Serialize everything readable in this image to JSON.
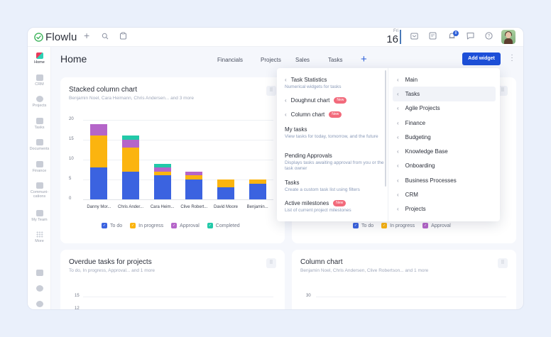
{
  "app": {
    "name": "Flowlu",
    "brand_color": "#3cb35a",
    "accent_color": "#1d4fd8"
  },
  "topbar": {
    "icons": [
      "plus-icon",
      "search-icon",
      "clipboard-icon"
    ],
    "date": {
      "weekday": "Fri",
      "day": "16"
    },
    "right_icons": [
      "mail-icon",
      "notes-icon",
      "bell-icon",
      "chat-icon",
      "help-icon"
    ],
    "notification_count": "8",
    "avatar": "user-avatar"
  },
  "sidebar": {
    "items": [
      {
        "label": "Home",
        "icon": "home-icon",
        "active": true
      },
      {
        "label": "CRM",
        "icon": "crm-funnel-icon"
      },
      {
        "label": "Projects",
        "icon": "projects-icon"
      },
      {
        "label": "Tasks",
        "icon": "tasks-icon"
      },
      {
        "label": "Documents",
        "icon": "documents-icon"
      },
      {
        "label": "Finance",
        "icon": "finance-icon"
      },
      {
        "label": "Communi-cations",
        "icon": "communications-icon"
      },
      {
        "label": "My Team",
        "icon": "team-icon"
      },
      {
        "label": "More",
        "icon": "grid-icon"
      }
    ],
    "bottom_icons": [
      "tour-icon",
      "settings-icon",
      "support-icon"
    ]
  },
  "header": {
    "title": "Home",
    "tabs": [
      "Financials",
      "Projects",
      "Sales",
      "Tasks"
    ],
    "add_tab": "+",
    "add_widget_label": "Add widget"
  },
  "widgets": [
    {
      "title": "Stacked column chart",
      "subtitle": "Benjamin Noel, Cara Heimann, Chris Andersen... and 3 more"
    },
    {
      "title": "Overdue tasks for projects",
      "subtitle": "To do, In progress, Approval... and 1 more",
      "y_ticks": [
        "15",
        "12"
      ]
    },
    {
      "title": "Column chart",
      "subtitle": "Benjamin Noel, Chris Andersen, Clive Robertson... and 1 more",
      "y_ticks": [
        "30"
      ]
    }
  ],
  "hidden_widget_legend": [
    "To do",
    "In progress",
    "Approval"
  ],
  "dropdown": {
    "widgets": [
      {
        "title": "Task Statistics",
        "desc": "Numerical widgets for tasks",
        "chevron": true,
        "new": false
      },
      {
        "title": "Doughnut chart",
        "desc": "",
        "chevron": true,
        "new": true
      },
      {
        "title": "Column chart",
        "desc": "",
        "chevron": true,
        "new": true
      },
      {
        "title": "My tasks",
        "desc": "View tasks for today, tomorrow, and the future",
        "chevron": false,
        "new": false
      },
      {
        "title": "Pending Approvals",
        "desc": "Displays tasks awaiting approval from you or the task owner",
        "chevron": false,
        "new": false
      },
      {
        "title": "Tasks",
        "desc": "Create a custom task list using filters",
        "chevron": false,
        "new": false
      },
      {
        "title": "Active milestones",
        "desc": "List of current project milestones",
        "chevron": false,
        "new": true
      }
    ],
    "new_badge": "New",
    "categories": [
      {
        "label": "Main",
        "active": false
      },
      {
        "label": "Tasks",
        "active": true
      },
      {
        "label": "Agile Projects",
        "active": false
      },
      {
        "label": "Finance",
        "active": false
      },
      {
        "label": "Budgeting",
        "active": false
      },
      {
        "label": "Knowledge Base",
        "active": false
      },
      {
        "label": "Onboarding",
        "active": false
      },
      {
        "label": "Business Processes",
        "active": false
      },
      {
        "label": "CRM",
        "active": false
      },
      {
        "label": "Projects",
        "active": false
      }
    ]
  },
  "chart_data": {
    "type": "bar",
    "stacked": true,
    "title": "Stacked column chart",
    "subtitle": "Benjamin Noel, Cara Heimann, Chris Andersen... and 3 more",
    "categories": [
      "Danny Mor...",
      "Chris Ander...",
      "Cara Heim...",
      "Clive Robert...",
      "David Moore",
      "Benjamin..."
    ],
    "series": [
      {
        "name": "To do",
        "color": "#3b63e0",
        "values": [
          8,
          7,
          6,
          5,
          3,
          4
        ]
      },
      {
        "name": "In progress",
        "color": "#fbb40f",
        "values": [
          8,
          6,
          1,
          1,
          2,
          1
        ]
      },
      {
        "name": "Approval",
        "color": "#b565c9",
        "values": [
          3,
          2,
          1,
          1,
          0,
          0
        ]
      },
      {
        "name": "Completed",
        "color": "#22c9a8",
        "values": [
          0,
          1,
          1,
          0,
          0,
          0
        ]
      }
    ],
    "y_ticks": [
      0,
      5,
      10,
      15,
      20
    ],
    "ylim": [
      0,
      20
    ],
    "grid": true,
    "legend_position": "bottom",
    "xlabel": "",
    "ylabel": ""
  }
}
